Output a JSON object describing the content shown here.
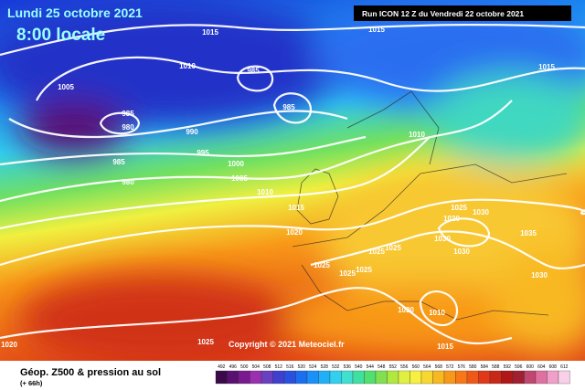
{
  "header": {
    "date": "Lundi 25 octobre 2021",
    "time": "8:00 locale",
    "run": "Run ICON 12 Z du Vendredi 22 octobre 2021"
  },
  "copyright": "Copyright © 2021 Meteociel.fr",
  "footer": {
    "title": "Géop. Z500 & pression au sol",
    "lead": "(+ 66h)"
  },
  "isobar_labels": [
    1015,
    1015,
    1015,
    1010,
    1005,
    985,
    985,
    985,
    980,
    990,
    995,
    985,
    980,
    1000,
    1005,
    1010,
    1015,
    1020,
    1010,
    1025,
    1030,
    1020,
    1025,
    1025,
    1030,
    1030,
    1035,
    1030,
    1025,
    1025,
    1025,
    1020,
    1010,
    1015,
    1020,
    1025
  ],
  "colorbar": {
    "labels": [
      492,
      496,
      500,
      504,
      508,
      512,
      516,
      520,
      524,
      528,
      532,
      536,
      540,
      544,
      548,
      552,
      556,
      560,
      564,
      568,
      572,
      576,
      580,
      584,
      588,
      592,
      596,
      600,
      604,
      608,
      612
    ],
    "colors": [
      "#3a0a4a",
      "#5a1070",
      "#7a1a90",
      "#9a30b0",
      "#6a40c0",
      "#4040d0",
      "#2a50e0",
      "#1a6ef0",
      "#1a90f8",
      "#20b0f8",
      "#30d0f0",
      "#40e0d0",
      "#40e0a0",
      "#50e070",
      "#80e050",
      "#b0e840",
      "#e0f040",
      "#f8f040",
      "#f8d830",
      "#f8b820",
      "#f89818",
      "#f87818",
      "#f05818",
      "#e03818",
      "#c82818",
      "#b01818",
      "#a02030",
      "#c04870",
      "#e070a0",
      "#f0a0c8",
      "#f8d0e8"
    ]
  }
}
